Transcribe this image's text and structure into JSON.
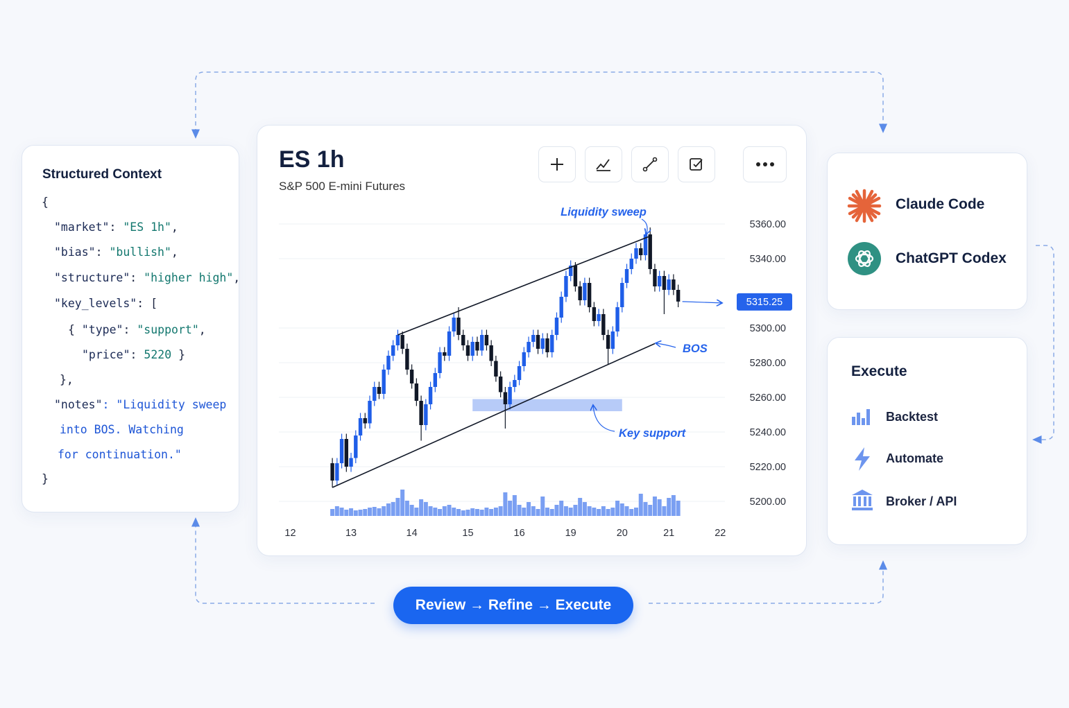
{
  "context_panel": {
    "title": "Structured Context",
    "lines": [
      "{",
      "\"market\": \"ES 1h\",",
      "\"bias\": \"bullish\",",
      "\"structure\": \"higher high\",",
      "\"key_levels\": [",
      "{ \"type\": \"support\",",
      "\"price\": 5220 }",
      "},",
      "\"notes\": \"Liquidity sweep",
      "into BOS. Watching",
      "for continuation.\"",
      "}"
    ]
  },
  "chart_data": {
    "type": "candlestick",
    "title": "ES 1h",
    "subtitle": "S&P 500 E-mini Futures",
    "open": [
      5222,
      5212,
      5222,
      5236,
      5220,
      5225,
      5238,
      5248,
      5245,
      5258,
      5266,
      5262,
      5276,
      5284,
      5290,
      5296,
      5288,
      5276,
      5268,
      5258,
      5244,
      5256,
      5266,
      5274,
      5286,
      5284,
      5298,
      5306,
      5296,
      5290,
      5284,
      5292,
      5287,
      5296,
      5290,
      5281,
      5272,
      5263,
      5256,
      5266,
      5270,
      5278,
      5286,
      5292,
      5296,
      5288,
      5294,
      5286,
      5296,
      5306,
      5318,
      5330,
      5336,
      5324,
      5316,
      5326,
      5312,
      5304,
      5308,
      5296,
      5288,
      5298,
      5312,
      5326,
      5334,
      5340,
      5346,
      5342,
      5354,
      5334,
      5324,
      5330,
      5322,
      5328,
      5322
    ],
    "high": [
      5225,
      5225,
      5239,
      5239,
      5228,
      5241,
      5251,
      5251,
      5261,
      5269,
      5269,
      5279,
      5287,
      5293,
      5299,
      5298,
      5291,
      5279,
      5271,
      5261,
      5259,
      5269,
      5277,
      5289,
      5289,
      5301,
      5309,
      5312,
      5299,
      5293,
      5295,
      5295,
      5299,
      5299,
      5293,
      5284,
      5275,
      5266,
      5269,
      5273,
      5281,
      5289,
      5295,
      5299,
      5299,
      5297,
      5297,
      5299,
      5309,
      5321,
      5333,
      5339,
      5338,
      5327,
      5329,
      5329,
      5315,
      5311,
      5311,
      5299,
      5301,
      5315,
      5329,
      5337,
      5343,
      5349,
      5349,
      5357,
      5358,
      5337,
      5333,
      5333,
      5331,
      5331,
      5325
    ],
    "low": [
      5208,
      5209,
      5219,
      5217,
      5217,
      5222,
      5235,
      5242,
      5242,
      5255,
      5259,
      5259,
      5273,
      5281,
      5287,
      5285,
      5273,
      5265,
      5255,
      5235,
      5241,
      5253,
      5263,
      5271,
      5281,
      5281,
      5295,
      5293,
      5287,
      5281,
      5281,
      5284,
      5284,
      5287,
      5278,
      5269,
      5260,
      5242,
      5253,
      5263,
      5267,
      5275,
      5283,
      5289,
      5285,
      5285,
      5283,
      5283,
      5293,
      5303,
      5315,
      5327,
      5321,
      5313,
      5313,
      5309,
      5301,
      5301,
      5293,
      5279,
      5285,
      5295,
      5309,
      5323,
      5331,
      5337,
      5339,
      5339,
      5331,
      5321,
      5321,
      5308,
      5319,
      5319,
      5312
    ],
    "close": [
      5212,
      5222,
      5236,
      5220,
      5225,
      5238,
      5248,
      5245,
      5258,
      5266,
      5262,
      5276,
      5284,
      5290,
      5296,
      5288,
      5276,
      5268,
      5258,
      5244,
      5256,
      5266,
      5274,
      5286,
      5284,
      5298,
      5306,
      5296,
      5290,
      5284,
      5292,
      5287,
      5296,
      5290,
      5281,
      5272,
      5263,
      5256,
      5266,
      5270,
      5278,
      5286,
      5292,
      5296,
      5288,
      5294,
      5286,
      5296,
      5306,
      5318,
      5330,
      5336,
      5324,
      5316,
      5326,
      5312,
      5304,
      5308,
      5296,
      5288,
      5298,
      5312,
      5326,
      5334,
      5340,
      5346,
      5342,
      5354,
      5334,
      5324,
      5330,
      5322,
      5328,
      5322,
      5315.25
    ],
    "volume": [
      10,
      14,
      12,
      9,
      11,
      8,
      9,
      10,
      12,
      13,
      11,
      14,
      18,
      20,
      26,
      38,
      22,
      16,
      12,
      24,
      20,
      14,
      12,
      10,
      14,
      16,
      12,
      10,
      8,
      9,
      11,
      10,
      9,
      12,
      10,
      12,
      14,
      34,
      22,
      30,
      16,
      12,
      20,
      14,
      10,
      28,
      12,
      10,
      16,
      22,
      14,
      12,
      16,
      26,
      20,
      14,
      12,
      10,
      14,
      10,
      12,
      22,
      18,
      14,
      10,
      12,
      32,
      20,
      16,
      28,
      24,
      14,
      26,
      30,
      22
    ],
    "xlim": [
      -11,
      84
    ],
    "xticks": [
      {
        "value": -9,
        "label": "12"
      },
      {
        "value": 4,
        "label": "13"
      },
      {
        "value": 17,
        "label": "14"
      },
      {
        "value": 29,
        "label": "15"
      },
      {
        "value": 40,
        "label": "16"
      },
      {
        "value": 51,
        "label": "19"
      },
      {
        "value": 62,
        "label": "20"
      },
      {
        "value": 72,
        "label": "21"
      },
      {
        "value": 83,
        "label": "22"
      }
    ],
    "ylim": [
      5190,
      5370
    ],
    "yticks": [
      {
        "value": 5200,
        "label": "5200.00"
      },
      {
        "value": 5220,
        "label": "5220.00"
      },
      {
        "value": 5240,
        "label": "5240.00"
      },
      {
        "value": 5260,
        "label": "5260.00"
      },
      {
        "value": 5280,
        "label": "5280.00"
      },
      {
        "value": 5300,
        "label": "5300.00"
      },
      {
        "value": 5340,
        "label": "5340.00"
      },
      {
        "value": 5360,
        "label": "5360.00"
      }
    ],
    "grid": true,
    "channel": [
      {
        "x": [
          14,
          68
        ],
        "y": [
          5296,
          5353
        ]
      },
      {
        "x": [
          0,
          69
        ],
        "y": [
          5208,
          5291
        ]
      }
    ],
    "zone": {
      "x": [
        30,
        62
      ],
      "y": [
        5252,
        5259
      ]
    },
    "annotations": [
      "Liquidity sweep",
      "BOS",
      "Key support"
    ],
    "up_color": "#1f5ee8",
    "down_color": "#111827",
    "volume_color": "#7a9ff2",
    "accent_color": "#2563eb"
  },
  "agents": [
    "Claude Code",
    "ChatGPT Codex"
  ],
  "execute": {
    "title": "Execute",
    "items": [
      "Backtest",
      "Automate",
      "Broker / API"
    ]
  },
  "cta": "Review → Refine → Execute"
}
